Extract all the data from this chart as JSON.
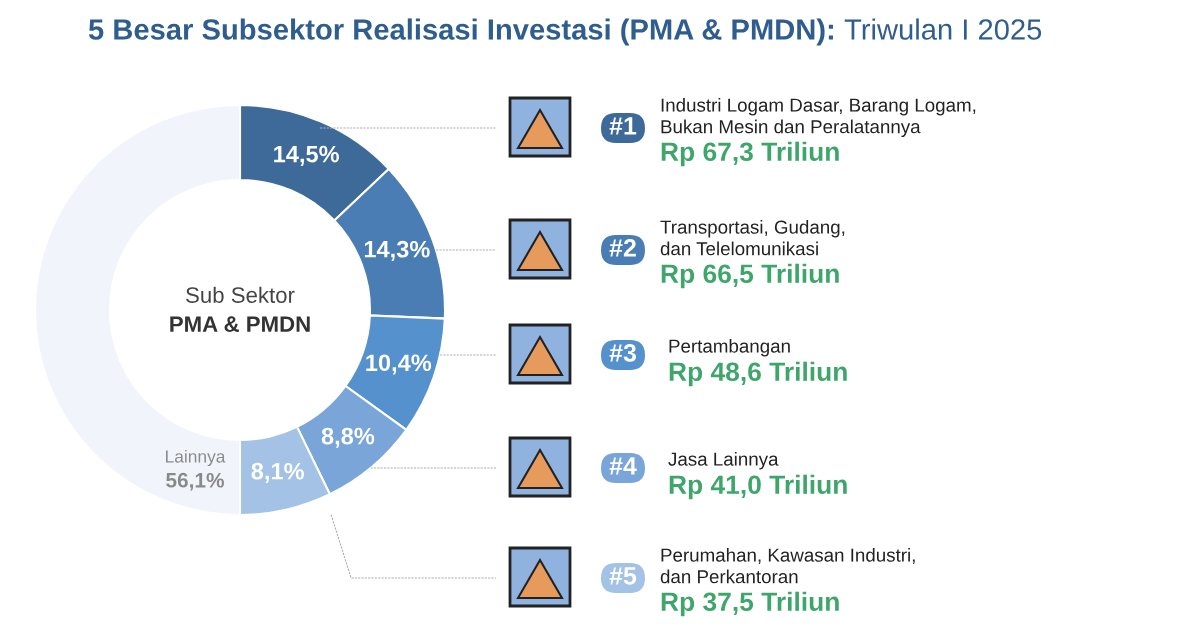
{
  "chart_data": {
    "type": "donut",
    "title": "5 Besar Subsektor Realisasi Investasi (PMA & PMDN):",
    "subtitle": "Triwulan I 2025",
    "categories": [
      "Industri Logam Dasar, Barang Logam,\nBukan Mesin dan Peralatannya",
      "Transportasi, Gudang,\ndan Telelomunikasi",
      "Pertambangan",
      "Jasa Lainnya",
      "Perumahan, Kawasan Industri,\ndan Perkantoran",
      "Lainnya"
    ],
    "values": [
      14.5,
      14.3,
      10.4,
      8.8,
      8.1,
      56.1
    ],
    "value_labels": [
      "14,5%",
      "14,3%",
      "10,4%",
      "8,8%",
      "8,1%",
      "56,1%"
    ],
    "colors": [
      "#3d6a99",
      "#4a7db3",
      "#5591cc",
      "#7aa5d8",
      "#a3c2e5",
      "#f1f5fb"
    ],
    "legend": "right",
    "annotations": [
      "Sub Sektor",
      "PMA & PMDN",
      "#1",
      "Rp 67,3 Triliun",
      "#2",
      "Rp 66,5 Triliun",
      "#3",
      "Rp 48,6 Triliun",
      "#4",
      "Rp 41,0 Triliun",
      "#5",
      "Rp 37,5 Triliun"
    ]
  }
}
